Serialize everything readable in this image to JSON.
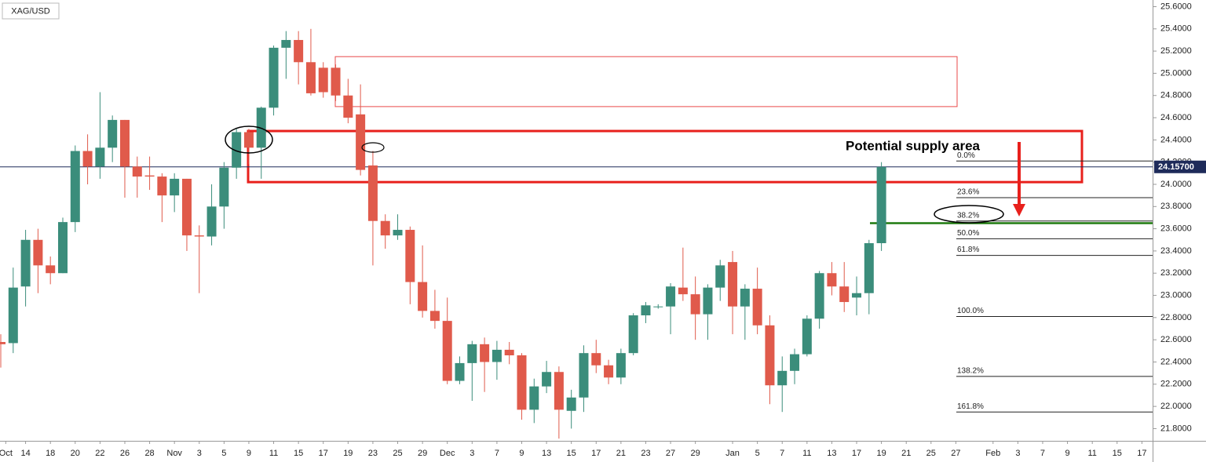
{
  "chart_data": {
    "type": "candlestick",
    "symbol": "XAG/USD",
    "up_color": "#3b8d7b",
    "down_color": "#e05a4b",
    "open": [
      22.58,
      22.57,
      23.08,
      23.5,
      23.27,
      23.2,
      23.66,
      24.3,
      24.16,
      24.33,
      24.58,
      24.16,
      24.08,
      24.07,
      23.9,
      24.05,
      23.54,
      23.53,
      23.8,
      24.15,
      24.47,
      24.33,
      24.69,
      25.23,
      25.3,
      25.1,
      25.05,
      25.05,
      24.8,
      24.63,
      24.17,
      23.67,
      23.54,
      23.59,
      23.12,
      22.86,
      22.77,
      22.23,
      22.39,
      22.56,
      22.4,
      22.51,
      22.46,
      21.97,
      22.18,
      22.31,
      21.96,
      22.08,
      22.48,
      22.37,
      22.26,
      22.48,
      22.82,
      22.9,
      22.9,
      23.07,
      23.01,
      22.83,
      23.07,
      23.3,
      22.9,
      23.06,
      22.73,
      22.19,
      22.32,
      22.47,
      22.79,
      23.2,
      23.08,
      22.98,
      23.02,
      23.47
    ],
    "high": [
      22.65,
      23.25,
      23.59,
      23.6,
      23.35,
      23.7,
      24.35,
      24.45,
      24.83,
      24.62,
      24.58,
      24.25,
      24.25,
      24.1,
      24.1,
      24.05,
      23.63,
      24.0,
      24.2,
      24.5,
      24.5,
      24.7,
      25.25,
      25.38,
      25.38,
      25.4,
      25.1,
      25.08,
      24.95,
      24.9,
      24.3,
      23.73,
      23.73,
      23.62,
      23.45,
      23.05,
      22.98,
      22.45,
      22.59,
      22.62,
      22.59,
      22.58,
      22.48,
      22.25,
      22.41,
      22.36,
      22.15,
      22.55,
      22.6,
      22.42,
      22.52,
      22.84,
      22.94,
      22.92,
      23.11,
      23.43,
      23.17,
      23.1,
      23.32,
      23.4,
      23.1,
      23.25,
      22.82,
      22.45,
      22.52,
      22.82,
      23.22,
      23.3,
      23.3,
      23.17,
      23.5,
      24.2
    ],
    "low": [
      22.35,
      22.48,
      22.9,
      23.02,
      23.1,
      23.2,
      23.57,
      24.0,
      24.05,
      24.2,
      23.88,
      23.88,
      23.95,
      23.66,
      23.75,
      23.4,
      23.02,
      23.45,
      23.6,
      24.05,
      24.18,
      24.05,
      24.62,
      24.95,
      24.9,
      24.8,
      24.78,
      24.75,
      24.55,
      24.08,
      23.27,
      23.42,
      23.5,
      22.92,
      22.8,
      22.7,
      22.2,
      22.2,
      22.05,
      22.13,
      22.24,
      22.38,
      21.88,
      21.85,
      22.12,
      21.71,
      21.8,
      21.95,
      22.3,
      22.2,
      22.2,
      22.46,
      22.75,
      22.88,
      22.65,
      22.95,
      22.6,
      22.6,
      22.95,
      22.65,
      22.6,
      22.65,
      22.02,
      21.95,
      22.2,
      22.45,
      22.7,
      23.0,
      22.85,
      22.82,
      22.83,
      23.4
    ],
    "close": [
      22.56,
      23.07,
      23.5,
      23.27,
      23.2,
      23.66,
      24.3,
      24.16,
      24.33,
      24.58,
      24.16,
      24.07,
      24.07,
      23.9,
      24.05,
      23.54,
      23.53,
      23.8,
      24.15,
      24.47,
      24.33,
      24.69,
      25.23,
      25.3,
      25.1,
      24.82,
      24.83,
      24.8,
      24.6,
      24.13,
      23.67,
      23.54,
      23.59,
      23.12,
      22.86,
      22.77,
      22.23,
      22.39,
      22.56,
      22.4,
      22.51,
      22.46,
      21.97,
      22.18,
      22.31,
      21.97,
      22.08,
      22.48,
      22.37,
      22.26,
      22.48,
      22.82,
      22.91,
      22.9,
      23.08,
      23.01,
      22.83,
      23.07,
      23.27,
      22.9,
      23.06,
      22.73,
      22.19,
      22.32,
      22.47,
      22.79,
      23.2,
      23.08,
      22.94,
      23.02,
      23.47,
      24.157
    ],
    "last_price": {
      "value": 24.157,
      "label": "24.15700"
    },
    "xlim": [
      0,
      92.8
    ],
    "xticks": [
      {
        "value": 0.4,
        "label": "Oct"
      },
      {
        "value": 2,
        "label": "14"
      },
      {
        "value": 4,
        "label": "18"
      },
      {
        "value": 6,
        "label": "20"
      },
      {
        "value": 8,
        "label": "22"
      },
      {
        "value": 10,
        "label": "26"
      },
      {
        "value": 12,
        "label": "28"
      },
      {
        "value": 14,
        "label": "Nov"
      },
      {
        "value": 16,
        "label": "3"
      },
      {
        "value": 18,
        "label": "5"
      },
      {
        "value": 20,
        "label": "9"
      },
      {
        "value": 22,
        "label": "11"
      },
      {
        "value": 24,
        "label": "15"
      },
      {
        "value": 26,
        "label": "17"
      },
      {
        "value": 28,
        "label": "19"
      },
      {
        "value": 30,
        "label": "23"
      },
      {
        "value": 32,
        "label": "25"
      },
      {
        "value": 34,
        "label": "29"
      },
      {
        "value": 36,
        "label": "Dec"
      },
      {
        "value": 38,
        "label": "3"
      },
      {
        "value": 40,
        "label": "7"
      },
      {
        "value": 42,
        "label": "9"
      },
      {
        "value": 44,
        "label": "13"
      },
      {
        "value": 46,
        "label": "15"
      },
      {
        "value": 48,
        "label": "17"
      },
      {
        "value": 50,
        "label": "21"
      },
      {
        "value": 52,
        "label": "23"
      },
      {
        "value": 54,
        "label": "27"
      },
      {
        "value": 56,
        "label": "29"
      },
      {
        "value": 59,
        "label": "Jan"
      },
      {
        "value": 61,
        "label": "5"
      },
      {
        "value": 63,
        "label": "7"
      },
      {
        "value": 65,
        "label": "11"
      },
      {
        "value": 67,
        "label": "13"
      },
      {
        "value": 69,
        "label": "17"
      },
      {
        "value": 71,
        "label": "19"
      },
      {
        "value": 73,
        "label": "21"
      },
      {
        "value": 75,
        "label": "25"
      },
      {
        "value": 77,
        "label": "27"
      },
      {
        "value": 80,
        "label": "Feb"
      },
      {
        "value": 82,
        "label": "3"
      },
      {
        "value": 84,
        "label": "7"
      },
      {
        "value": 86,
        "label": "9"
      },
      {
        "value": 88,
        "label": "11"
      },
      {
        "value": 90,
        "label": "15"
      },
      {
        "value": 92,
        "label": "17"
      }
    ],
    "ylim": [
      21.69,
      25.66
    ],
    "yticks": [
      {
        "value": 21.8,
        "label": "21.8000"
      },
      {
        "value": 22,
        "label": "22.0000"
      },
      {
        "value": 22.2,
        "label": "22.2000"
      },
      {
        "value": 22.4,
        "label": "22.4000"
      },
      {
        "value": 22.6,
        "label": "22.6000"
      },
      {
        "value": 22.8,
        "label": "22.8000"
      },
      {
        "value": 23,
        "label": "23.0000"
      },
      {
        "value": 23.2,
        "label": "23.2000"
      },
      {
        "value": 23.4,
        "label": "23.4000"
      },
      {
        "value": 23.6,
        "label": "23.6000"
      },
      {
        "value": 23.8,
        "label": "23.8000"
      },
      {
        "value": 24,
        "label": "24.0000"
      },
      {
        "value": 24.2,
        "label": "24.2000"
      },
      {
        "value": 24.4,
        "label": "24.4000"
      },
      {
        "value": 24.6,
        "label": "24.6000"
      },
      {
        "value": 24.8,
        "label": "24.8000"
      },
      {
        "value": 25,
        "label": "25.0000"
      },
      {
        "value": 25.2,
        "label": "25.2000"
      },
      {
        "value": 25.4,
        "label": "25.4000"
      },
      {
        "value": 25.6,
        "label": "25.6000"
      }
    ],
    "grid": false,
    "supply_area": {
      "label": "Potential supply area",
      "range": [
        24.02,
        24.48
      ]
    },
    "upper_zone": {
      "range": [
        24.7,
        25.15
      ]
    },
    "support_level": 23.65,
    "fib_levels": [
      {
        "value": 24.21,
        "label": "0.0%"
      },
      {
        "value": 23.88,
        "label": "23.6%"
      },
      {
        "value": 23.67,
        "label": "38.2%"
      },
      {
        "value": 23.51,
        "label": "50.0%"
      },
      {
        "value": 23.36,
        "label": "61.8%"
      },
      {
        "value": 22.81,
        "label": "100.0%"
      },
      {
        "value": 22.27,
        "label": "138.2%"
      },
      {
        "value": 21.95,
        "label": "161.8%"
      }
    ]
  }
}
